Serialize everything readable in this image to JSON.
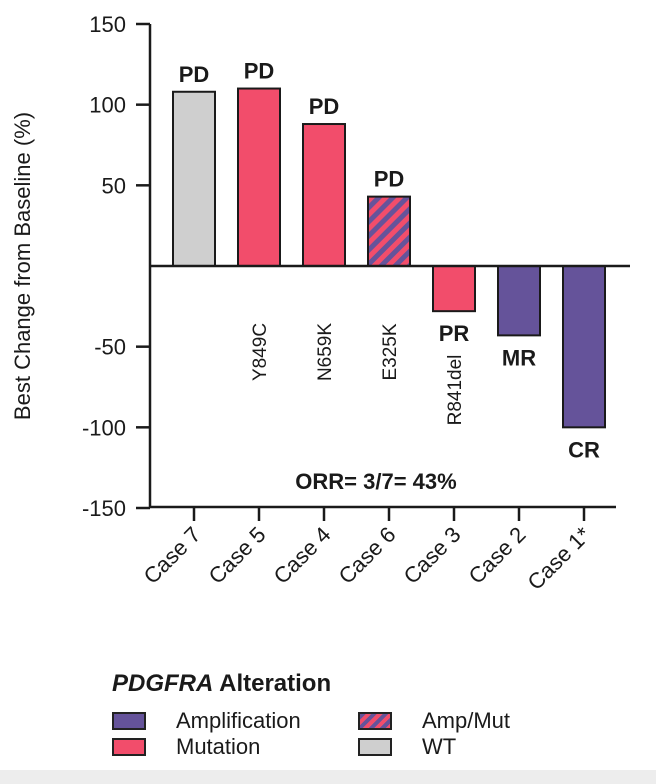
{
  "chart_data": {
    "type": "bar",
    "ylabel": "Best Change from Baseline (%)",
    "ylim": [
      -150,
      150
    ],
    "yticks": [
      150,
      100,
      50,
      -50,
      -100,
      -150
    ],
    "categories": [
      "Case 7",
      "Case 5",
      "Case 4",
      "Case 6",
      "Case 3",
      "Case 2",
      "Case 1*"
    ],
    "values": [
      108,
      110,
      88,
      43,
      -28,
      -43,
      -100
    ],
    "responses": [
      "PD",
      "PD",
      "PD",
      "PD",
      "PR",
      "MR",
      "CR"
    ],
    "alterations": [
      "WT",
      "Mutation",
      "Mutation",
      "Amp/Mut",
      "Mutation",
      "Amplification",
      "Amplification"
    ],
    "mutation_labels": [
      "",
      "Y849C",
      "N659K",
      "E325K",
      "R841del",
      "",
      ""
    ],
    "annotation": "ORR= 3/7= 43%",
    "colors": {
      "Amplification": "#65539a",
      "Mutation": "#f24d6b",
      "WT": "#cfcfcf"
    }
  },
  "legend": {
    "title_gene": "PDGFRA",
    "title_rest": " Alteration",
    "items": {
      "amplification": "Amplification",
      "mutation": "Mutation",
      "ampmut": "Amp/Mut",
      "wt": "WT"
    }
  }
}
